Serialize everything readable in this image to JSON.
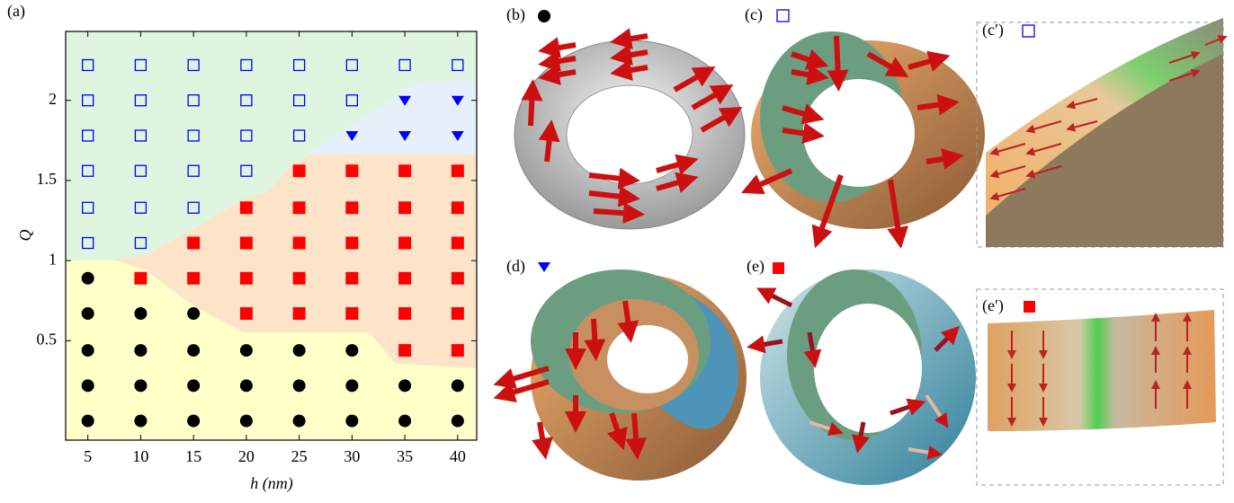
{
  "chart_data": {
    "type": "scatter",
    "panel_label": "(a)",
    "x_label": "h (nm)",
    "y_label": "Q",
    "xlim": [
      2.9,
      41.8
    ],
    "ylim": [
      -0.12,
      2.43
    ],
    "xticks": [
      5,
      10,
      15,
      20,
      25,
      30,
      35,
      40
    ],
    "yticks": [
      0.5,
      1,
      1.5,
      2
    ],
    "series": [
      {
        "marker": "circle",
        "color": "#000000",
        "x": [
          5,
          5,
          10,
          15,
          5,
          10,
          15,
          20,
          25,
          30,
          5,
          10,
          15,
          20,
          25,
          30,
          35,
          40,
          5,
          10,
          15,
          20,
          25,
          30,
          35,
          40
        ],
        "values": [
          0.89,
          0.67,
          0.67,
          0.67,
          0.44,
          0.44,
          0.44,
          0.44,
          0.44,
          0.44,
          0.22,
          0.22,
          0.22,
          0.22,
          0.22,
          0.22,
          0.22,
          0.22,
          0,
          0,
          0,
          0,
          0,
          0,
          0,
          0
        ]
      },
      {
        "marker": "square-open",
        "color": "#0000ff",
        "x": [
          5,
          10,
          15,
          20,
          25,
          30,
          35,
          40,
          5,
          10,
          15,
          20,
          25,
          30,
          5,
          10,
          15,
          20,
          25,
          5,
          10,
          15,
          20,
          5,
          10,
          15,
          5,
          10
        ],
        "values": [
          2.22,
          2.22,
          2.22,
          2.22,
          2.22,
          2.22,
          2.22,
          2.22,
          2,
          2,
          2,
          2,
          2,
          2,
          1.78,
          1.78,
          1.78,
          1.78,
          1.78,
          1.56,
          1.56,
          1.56,
          1.56,
          1.33,
          1.33,
          1.33,
          1.11,
          1.11
        ]
      },
      {
        "marker": "triangle",
        "color": "#0000ff",
        "x": [
          35,
          40,
          30,
          35,
          40
        ],
        "values": [
          2,
          2,
          1.78,
          1.78,
          1.78
        ]
      },
      {
        "marker": "square",
        "color": "#ff0000",
        "x": [
          25,
          30,
          35,
          40,
          20,
          25,
          30,
          35,
          40,
          15,
          20,
          25,
          30,
          35,
          40,
          10,
          15,
          20,
          25,
          30,
          35,
          40,
          20,
          25,
          30,
          35,
          40,
          35,
          40
        ],
        "values": [
          1.56,
          1.56,
          1.56,
          1.56,
          1.33,
          1.33,
          1.33,
          1.33,
          1.33,
          1.11,
          1.11,
          1.11,
          1.11,
          1.11,
          1.11,
          0.89,
          0.89,
          0.89,
          0.89,
          0.89,
          0.89,
          0.89,
          0.67,
          0.67,
          0.67,
          0.67,
          0.67,
          0.44,
          0.44
        ]
      }
    ]
  },
  "panels": [
    {
      "label": "(b)"
    },
    {
      "label": "(c)"
    },
    {
      "label": "(c′)"
    },
    {
      "label": "(d)"
    },
    {
      "label": "(e)"
    },
    {
      "label": "(e′)"
    }
  ]
}
